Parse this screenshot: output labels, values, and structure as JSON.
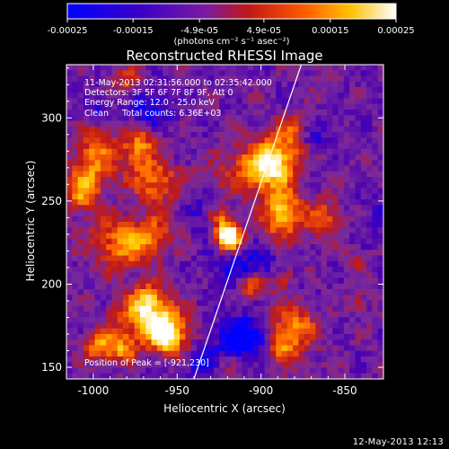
{
  "colorbar": {
    "ticks": [
      "-0.00025",
      "-0.00015",
      "-4.9e-05",
      "4.9e-05",
      "0.00015",
      "0.00025"
    ],
    "tick_values": [
      -0.00025,
      -0.00015,
      -4.9e-05,
      4.9e-05,
      0.00015,
      0.00025
    ],
    "range": [
      -0.00025,
      0.00025
    ],
    "units_label": "(photons cm⁻² s⁻¹ asec⁻²)"
  },
  "chart_data": {
    "type": "heatmap",
    "title": "Reconstructed RHESSI Image",
    "xlabel": "Heliocentric X (arcsec)",
    "ylabel": "Heliocentric Y (arcsec)",
    "xlim": [
      -1016,
      -827
    ],
    "ylim": [
      143,
      332
    ],
    "xticks": [
      -1000,
      -950,
      -900,
      -850
    ],
    "yticks": [
      150,
      200,
      250,
      300
    ],
    "xtick_labels": [
      "-1000",
      "-950",
      "-900",
      "-850"
    ],
    "ytick_labels": [
      "150",
      "200",
      "250",
      "300"
    ],
    "limb_line": [
      [
        -940,
        143
      ],
      [
        -876,
        332
      ]
    ],
    "peak_position": [
      -921,
      230
    ],
    "colormap": [
      "#0000ff",
      "#4a00b0",
      "#7a2a9c",
      "#c01818",
      "#ff6600",
      "#ffcc00",
      "#ffffff"
    ],
    "annotations": [
      "11-May-2013 02:31:56.000 to 02:35:42.000",
      "Detectors: 3F 5F 6F 7F 8F 9F, Att 0",
      "Energy Range: 12.0 - 25.0 keV",
      "Clean     Total counts: 6.36E+03"
    ],
    "peak_label": "Position of Peak = [-921,230]"
  },
  "footer": {
    "timestamp": "12-May-2013 12:13"
  }
}
